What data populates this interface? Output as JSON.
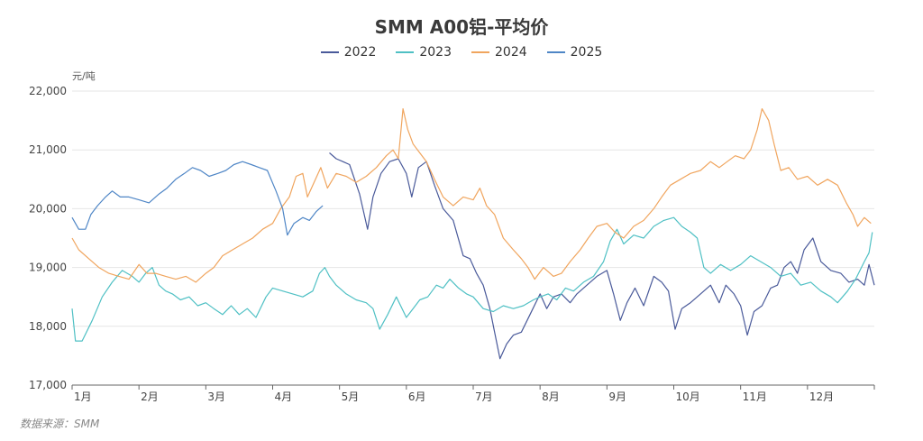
{
  "title": "SMM A00铝-平均价",
  "unit_label": "元/吨",
  "source": "数据来源：SMM",
  "colors": {
    "2022": "#4a5a9a",
    "2023": "#4fc0c4",
    "2024": "#f0a55e",
    "2025": "#4f86c6"
  },
  "chart_data": {
    "type": "line",
    "title": "SMM A00铝-平均价",
    "ylabel": "元/吨",
    "xlabel": "",
    "ylim": [
      17000,
      22000
    ],
    "yticks": [
      17000,
      18000,
      19000,
      20000,
      21000,
      22000
    ],
    "ytick_labels": [
      "17,000",
      "18,000",
      "19,000",
      "20,000",
      "21,000",
      "22,000"
    ],
    "xlim": [
      1,
      13
    ],
    "xticks": [
      1,
      2,
      3,
      4,
      5,
      6,
      7,
      8,
      9,
      10,
      11,
      12
    ],
    "xtick_labels": [
      "1月",
      "2月",
      "3月",
      "4月",
      "5月",
      "6月",
      "7月",
      "8月",
      "9月",
      "10月",
      "11月",
      "12月"
    ],
    "grid": true,
    "legend": "top-center",
    "series": [
      {
        "name": "2022",
        "points": [
          [
            4.85,
            20950
          ],
          [
            4.95,
            20850
          ],
          [
            5.05,
            20800
          ],
          [
            5.15,
            20750
          ],
          [
            5.3,
            20250
          ],
          [
            5.42,
            19650
          ],
          [
            5.5,
            20200
          ],
          [
            5.62,
            20600
          ],
          [
            5.75,
            20800
          ],
          [
            5.88,
            20850
          ],
          [
            6.0,
            20600
          ],
          [
            6.08,
            20200
          ],
          [
            6.18,
            20700
          ],
          [
            6.3,
            20800
          ],
          [
            6.42,
            20400
          ],
          [
            6.55,
            20000
          ],
          [
            6.7,
            19800
          ],
          [
            6.85,
            19200
          ],
          [
            6.95,
            19150
          ],
          [
            7.05,
            18900
          ],
          [
            7.15,
            18700
          ],
          [
            7.25,
            18300
          ],
          [
            7.32,
            17900
          ],
          [
            7.4,
            17450
          ],
          [
            7.5,
            17700
          ],
          [
            7.6,
            17850
          ],
          [
            7.72,
            17900
          ],
          [
            7.85,
            18200
          ],
          [
            8.0,
            18550
          ],
          [
            8.1,
            18300
          ],
          [
            8.2,
            18500
          ],
          [
            8.32,
            18550
          ],
          [
            8.45,
            18400
          ],
          [
            8.55,
            18550
          ],
          [
            8.7,
            18700
          ],
          [
            8.85,
            18850
          ],
          [
            9.0,
            18950
          ],
          [
            9.1,
            18550
          ],
          [
            9.2,
            18100
          ],
          [
            9.3,
            18400
          ],
          [
            9.42,
            18650
          ],
          [
            9.55,
            18350
          ],
          [
            9.7,
            18850
          ],
          [
            9.82,
            18750
          ],
          [
            9.92,
            18600
          ],
          [
            10.02,
            17950
          ],
          [
            10.12,
            18300
          ],
          [
            10.25,
            18400
          ],
          [
            10.4,
            18550
          ],
          [
            10.55,
            18700
          ],
          [
            10.68,
            18400
          ],
          [
            10.78,
            18700
          ],
          [
            10.9,
            18550
          ],
          [
            11.0,
            18350
          ],
          [
            11.1,
            17850
          ],
          [
            11.2,
            18250
          ],
          [
            11.32,
            18350
          ],
          [
            11.45,
            18650
          ],
          [
            11.55,
            18700
          ],
          [
            11.65,
            19000
          ],
          [
            11.75,
            19100
          ],
          [
            11.85,
            18900
          ],
          [
            11.95,
            19300
          ],
          [
            12.08,
            19500
          ],
          [
            12.2,
            19100
          ],
          [
            12.35,
            18950
          ],
          [
            12.5,
            18900
          ],
          [
            12.62,
            18750
          ],
          [
            12.75,
            18800
          ],
          [
            12.85,
            18700
          ],
          [
            12.92,
            19050
          ],
          [
            13.0,
            18700
          ]
        ]
      },
      {
        "name": "2023",
        "points": [
          [
            1.0,
            18300
          ],
          [
            1.05,
            17750
          ],
          [
            1.15,
            17750
          ],
          [
            1.3,
            18100
          ],
          [
            1.45,
            18500
          ],
          [
            1.6,
            18750
          ],
          [
            1.75,
            18950
          ],
          [
            1.9,
            18850
          ],
          [
            2.0,
            18750
          ],
          [
            2.1,
            18900
          ],
          [
            2.2,
            19000
          ],
          [
            2.3,
            18700
          ],
          [
            2.4,
            18600
          ],
          [
            2.5,
            18550
          ],
          [
            2.62,
            18450
          ],
          [
            2.75,
            18500
          ],
          [
            2.88,
            18350
          ],
          [
            3.0,
            18400
          ],
          [
            3.12,
            18300
          ],
          [
            3.25,
            18200
          ],
          [
            3.38,
            18350
          ],
          [
            3.5,
            18200
          ],
          [
            3.62,
            18300
          ],
          [
            3.75,
            18150
          ],
          [
            3.9,
            18500
          ],
          [
            4.0,
            18650
          ],
          [
            4.15,
            18600
          ],
          [
            4.3,
            18550
          ],
          [
            4.45,
            18500
          ],
          [
            4.6,
            18600
          ],
          [
            4.7,
            18900
          ],
          [
            4.78,
            19000
          ],
          [
            4.85,
            18850
          ],
          [
            4.95,
            18700
          ],
          [
            5.1,
            18550
          ],
          [
            5.25,
            18450
          ],
          [
            5.4,
            18400
          ],
          [
            5.5,
            18300
          ],
          [
            5.6,
            17950
          ],
          [
            5.72,
            18200
          ],
          [
            5.85,
            18500
          ],
          [
            6.0,
            18150
          ],
          [
            6.1,
            18300
          ],
          [
            6.2,
            18450
          ],
          [
            6.32,
            18500
          ],
          [
            6.45,
            18700
          ],
          [
            6.55,
            18650
          ],
          [
            6.65,
            18800
          ],
          [
            6.78,
            18650
          ],
          [
            6.9,
            18550
          ],
          [
            7.0,
            18500
          ],
          [
            7.15,
            18300
          ],
          [
            7.3,
            18250
          ],
          [
            7.45,
            18350
          ],
          [
            7.6,
            18300
          ],
          [
            7.75,
            18350
          ],
          [
            7.9,
            18450
          ],
          [
            8.0,
            18500
          ],
          [
            8.12,
            18550
          ],
          [
            8.25,
            18450
          ],
          [
            8.38,
            18650
          ],
          [
            8.5,
            18600
          ],
          [
            8.65,
            18750
          ],
          [
            8.8,
            18850
          ],
          [
            8.95,
            19100
          ],
          [
            9.05,
            19450
          ],
          [
            9.15,
            19650
          ],
          [
            9.25,
            19400
          ],
          [
            9.4,
            19550
          ],
          [
            9.55,
            19500
          ],
          [
            9.7,
            19700
          ],
          [
            9.85,
            19800
          ],
          [
            10.0,
            19850
          ],
          [
            10.12,
            19700
          ],
          [
            10.25,
            19600
          ],
          [
            10.35,
            19500
          ],
          [
            10.45,
            19000
          ],
          [
            10.55,
            18900
          ],
          [
            10.7,
            19050
          ],
          [
            10.85,
            18950
          ],
          [
            11.0,
            19050
          ],
          [
            11.15,
            19200
          ],
          [
            11.3,
            19100
          ],
          [
            11.45,
            19000
          ],
          [
            11.6,
            18850
          ],
          [
            11.75,
            18900
          ],
          [
            11.9,
            18700
          ],
          [
            12.05,
            18750
          ],
          [
            12.2,
            18600
          ],
          [
            12.35,
            18500
          ],
          [
            12.45,
            18400
          ],
          [
            12.6,
            18600
          ],
          [
            12.72,
            18800
          ],
          [
            12.85,
            19100
          ],
          [
            12.92,
            19250
          ],
          [
            12.97,
            19600
          ]
        ]
      },
      {
        "name": "2024",
        "points": [
          [
            1.0,
            19500
          ],
          [
            1.1,
            19300
          ],
          [
            1.25,
            19150
          ],
          [
            1.4,
            19000
          ],
          [
            1.55,
            18900
          ],
          [
            1.7,
            18850
          ],
          [
            1.85,
            18800
          ],
          [
            2.0,
            19050
          ],
          [
            2.12,
            18900
          ],
          [
            2.25,
            18900
          ],
          [
            2.4,
            18850
          ],
          [
            2.55,
            18800
          ],
          [
            2.7,
            18850
          ],
          [
            2.85,
            18750
          ],
          [
            3.0,
            18900
          ],
          [
            3.12,
            19000
          ],
          [
            3.25,
            19200
          ],
          [
            3.4,
            19300
          ],
          [
            3.55,
            19400
          ],
          [
            3.7,
            19500
          ],
          [
            3.85,
            19650
          ],
          [
            4.0,
            19750
          ],
          [
            4.12,
            20000
          ],
          [
            4.25,
            20200
          ],
          [
            4.35,
            20550
          ],
          [
            4.45,
            20600
          ],
          [
            4.52,
            20200
          ],
          [
            4.62,
            20450
          ],
          [
            4.72,
            20700
          ],
          [
            4.82,
            20350
          ],
          [
            4.95,
            20600
          ],
          [
            5.1,
            20550
          ],
          [
            5.25,
            20450
          ],
          [
            5.4,
            20550
          ],
          [
            5.55,
            20700
          ],
          [
            5.7,
            20900
          ],
          [
            5.8,
            21000
          ],
          [
            5.88,
            20850
          ],
          [
            5.95,
            21700
          ],
          [
            6.02,
            21350
          ],
          [
            6.1,
            21100
          ],
          [
            6.2,
            20950
          ],
          [
            6.3,
            20800
          ],
          [
            6.42,
            20500
          ],
          [
            6.55,
            20200
          ],
          [
            6.7,
            20050
          ],
          [
            6.85,
            20200
          ],
          [
            7.0,
            20150
          ],
          [
            7.1,
            20350
          ],
          [
            7.2,
            20050
          ],
          [
            7.32,
            19900
          ],
          [
            7.45,
            19500
          ],
          [
            7.6,
            19300
          ],
          [
            7.72,
            19150
          ],
          [
            7.82,
            19000
          ],
          [
            7.92,
            18800
          ],
          [
            8.05,
            19000
          ],
          [
            8.2,
            18850
          ],
          [
            8.32,
            18900
          ],
          [
            8.45,
            19100
          ],
          [
            8.6,
            19300
          ],
          [
            8.72,
            19500
          ],
          [
            8.85,
            19700
          ],
          [
            9.0,
            19750
          ],
          [
            9.12,
            19600
          ],
          [
            9.25,
            19500
          ],
          [
            9.4,
            19700
          ],
          [
            9.55,
            19800
          ],
          [
            9.7,
            20000
          ],
          [
            9.82,
            20200
          ],
          [
            9.95,
            20400
          ],
          [
            10.1,
            20500
          ],
          [
            10.25,
            20600
          ],
          [
            10.4,
            20650
          ],
          [
            10.55,
            20800
          ],
          [
            10.68,
            20700
          ],
          [
            10.8,
            20800
          ],
          [
            10.92,
            20900
          ],
          [
            11.05,
            20850
          ],
          [
            11.15,
            21000
          ],
          [
            11.25,
            21350
          ],
          [
            11.32,
            21700
          ],
          [
            11.42,
            21500
          ],
          [
            11.5,
            21100
          ],
          [
            11.6,
            20650
          ],
          [
            11.72,
            20700
          ],
          [
            11.85,
            20500
          ],
          [
            12.0,
            20550
          ],
          [
            12.15,
            20400
          ],
          [
            12.3,
            20500
          ],
          [
            12.45,
            20400
          ],
          [
            12.58,
            20100
          ],
          [
            12.68,
            19900
          ],
          [
            12.75,
            19700
          ],
          [
            12.85,
            19850
          ],
          [
            12.95,
            19750
          ]
        ]
      },
      {
        "name": "2025",
        "points": [
          [
            1.0,
            19850
          ],
          [
            1.1,
            19650
          ],
          [
            1.2,
            19650
          ],
          [
            1.28,
            19900
          ],
          [
            1.38,
            20050
          ],
          [
            1.5,
            20200
          ],
          [
            1.6,
            20300
          ],
          [
            1.72,
            20200
          ],
          [
            1.85,
            20200
          ],
          [
            2.0,
            20150
          ],
          [
            2.15,
            20100
          ],
          [
            2.3,
            20250
          ],
          [
            2.42,
            20350
          ],
          [
            2.55,
            20500
          ],
          [
            2.68,
            20600
          ],
          [
            2.8,
            20700
          ],
          [
            2.92,
            20650
          ],
          [
            3.05,
            20550
          ],
          [
            3.18,
            20600
          ],
          [
            3.3,
            20650
          ],
          [
            3.42,
            20750
          ],
          [
            3.55,
            20800
          ],
          [
            3.68,
            20750
          ],
          [
            3.8,
            20700
          ],
          [
            3.92,
            20650
          ],
          [
            4.05,
            20300
          ],
          [
            4.15,
            20000
          ],
          [
            4.22,
            19550
          ],
          [
            4.32,
            19750
          ],
          [
            4.45,
            19850
          ],
          [
            4.55,
            19800
          ],
          [
            4.65,
            19950
          ],
          [
            4.75,
            20050
          ]
        ]
      }
    ]
  }
}
